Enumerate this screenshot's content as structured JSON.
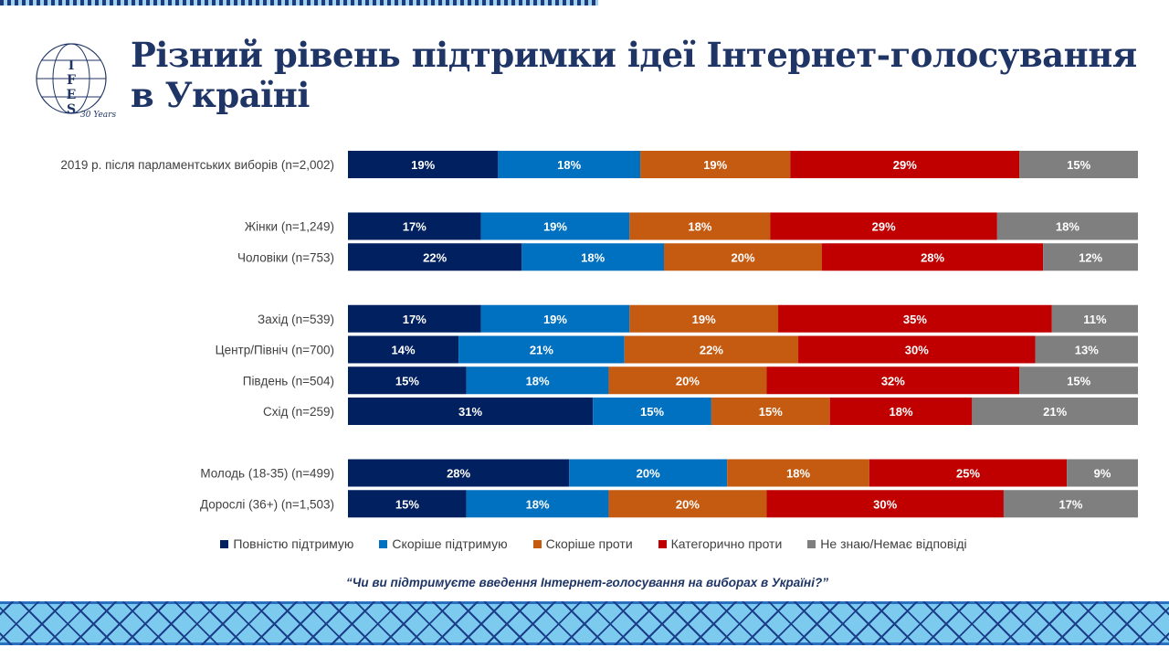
{
  "header": {
    "title": "Різний рівень підтримки ідеї Інтернет-голосування в Україні",
    "logo_text": "INTERNATIONAL FOUNDATION FOR ELECTORAL SYSTEMS · IFES · 30 Years"
  },
  "chart_data": {
    "type": "bar",
    "orientation": "horizontal-stacked-100",
    "categories": [
      "2019 р. після парламентських виборів (n=2,002)",
      "Жінки (n=1,249)",
      "Чоловіки (n=753)",
      "Захід (n=539)",
      "Центр/Північ (n=700)",
      "Південь (n=504)",
      "Схід (n=259)",
      "Молодь (18-35) (n=499)",
      "Дорослі (36+) (n=1,503)"
    ],
    "series": [
      {
        "name": "Повністю підтримую",
        "color": "#002060",
        "values": [
          19,
          17,
          22,
          17,
          14,
          15,
          31,
          28,
          15
        ]
      },
      {
        "name": "Скоріше підтримую",
        "color": "#0070C0",
        "values": [
          18,
          19,
          18,
          19,
          21,
          18,
          15,
          20,
          18
        ]
      },
      {
        "name": "Скоріше проти",
        "color": "#C55A11",
        "values": [
          19,
          18,
          20,
          19,
          22,
          20,
          15,
          18,
          20
        ]
      },
      {
        "name": "Категорично проти",
        "color": "#C00000",
        "values": [
          29,
          29,
          28,
          35,
          30,
          32,
          18,
          25,
          30
        ]
      },
      {
        "name": "Не знаю/Немає відповіді",
        "color": "#7F7F7F",
        "values": [
          15,
          18,
          12,
          11,
          13,
          15,
          21,
          9,
          17
        ]
      }
    ],
    "value_suffix": "%",
    "legend": "bottom",
    "grid": false
  },
  "footer": {
    "question": "“Чи ви підтримуєте введення Інтернет-голосування на виборах в Україні?”"
  }
}
